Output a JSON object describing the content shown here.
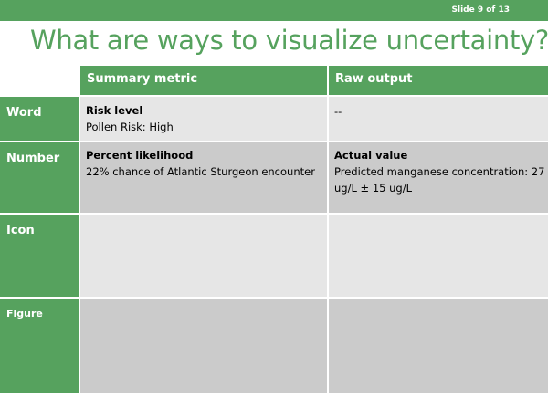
{
  "slide": {
    "number_label": "Slide 9 of 13",
    "title": "What are ways to visualize uncertainty?"
  },
  "table": {
    "columns": [
      "Summary metric",
      "Raw output"
    ],
    "rows": [
      {
        "label": "Word",
        "summary_title": "Risk level",
        "summary_text": "Pollen Risk: High",
        "raw_title": "",
        "raw_text": "--"
      },
      {
        "label": "Number",
        "summary_title": "Percent likelihood",
        "summary_text": "22% chance of Atlantic Sturgeon encounter",
        "raw_title": "Actual value",
        "raw_text": "Predicted manganese concentration: 27 ug/L ± 15 ug/L"
      },
      {
        "label": "Icon",
        "summary_title": "",
        "summary_text": "",
        "raw_title": "",
        "raw_text": ""
      },
      {
        "label": "Figure",
        "summary_title": "",
        "summary_text": "",
        "raw_title": "",
        "raw_text": ""
      }
    ]
  },
  "colors": {
    "accent_green": "#56a25e",
    "row_light": "#e6e6e6",
    "row_dark": "#cbcbcb"
  }
}
